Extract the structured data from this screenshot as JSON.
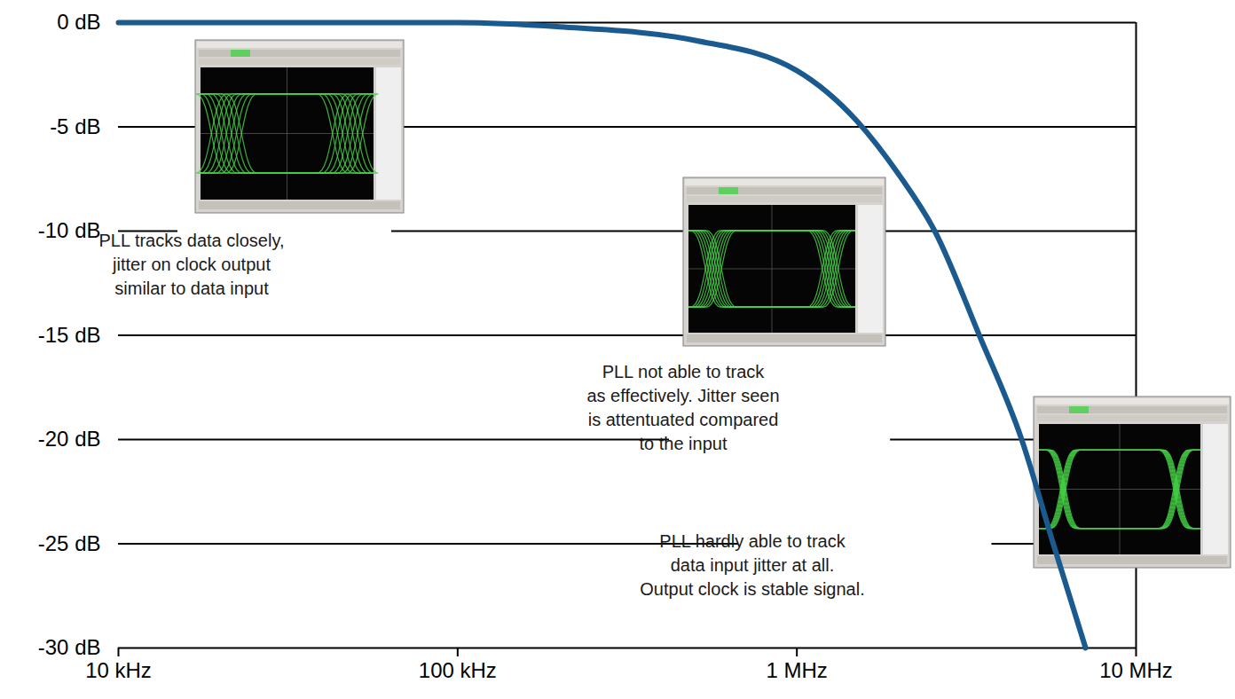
{
  "chart_data": {
    "type": "line",
    "x": [
      10000,
      20000,
      50000,
      100000,
      200000,
      500000,
      1000000,
      1500000,
      2000000,
      2550000,
      3450000,
      4600000,
      5700000,
      7100000
    ],
    "values": [
      0,
      0,
      0,
      0,
      -0.2,
      -0.85,
      -2.3,
      -4.7,
      -7.3,
      -10,
      -15,
      -20,
      -25,
      -30
    ],
    "color": "#1a5a8e",
    "log": "x",
    "xlim": [
      10000,
      10000000
    ],
    "xticks": [
      {
        "value": 10000,
        "label": "10 kHz"
      },
      {
        "value": 100000,
        "label": "100 kHz"
      },
      {
        "value": 1000000,
        "label": "1 MHz"
      },
      {
        "value": 10000000,
        "label": "10 MHz"
      }
    ],
    "ylim": [
      -30,
      0
    ],
    "yticks": [
      {
        "value": 0,
        "label": "0 dB"
      },
      {
        "value": -5,
        "label": "-5 dB"
      },
      {
        "value": -10,
        "label": "-10 dB"
      },
      {
        "value": -15,
        "label": "-15 dB"
      },
      {
        "value": -20,
        "label": "-20 dB"
      },
      {
        "value": -25,
        "label": "-25 dB"
      },
      {
        "value": -30,
        "label": "-30 dB"
      }
    ],
    "grid": true,
    "annotations": [
      "PLL tracks data closely,\njitter on clock output\nsimilar to data input",
      "PLL not able to track\nas effectively. Jitter seen\nis attentuated compared\nto the input",
      "PLL hardly able to track\ndata input jitter at all.\nOutput clock is stable signal."
    ]
  }
}
